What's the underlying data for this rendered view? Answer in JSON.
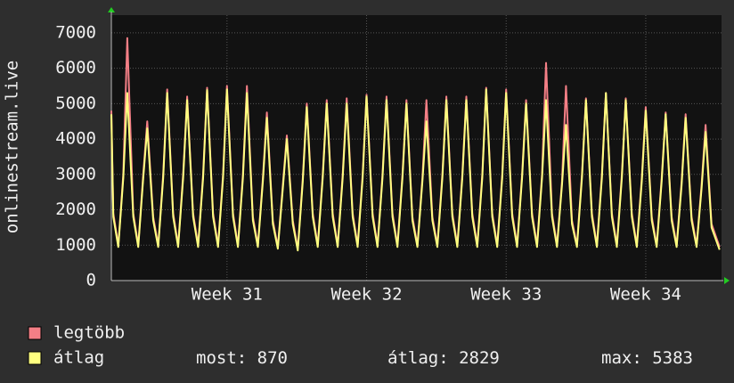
{
  "chart_data": {
    "type": "line",
    "ylabel": "onlinestream.live",
    "x": [
      0,
      0.1,
      0.35,
      0.6,
      0.8,
      1.1,
      1.35,
      1.6,
      1.8,
      2.1,
      2.35,
      2.6,
      2.8,
      3.1,
      3.35,
      3.6,
      3.8,
      4.1,
      4.35,
      4.6,
      4.8,
      5.1,
      5.35,
      5.6,
      5.8,
      6.1,
      6.35,
      6.6,
      6.8,
      7.1,
      7.35,
      7.6,
      7.8,
      8.1,
      8.35,
      8.6,
      8.8,
      9.1,
      9.35,
      9.6,
      9.8,
      10.1,
      10.35,
      10.6,
      10.8,
      11.1,
      11.35,
      11.6,
      11.8,
      12.1,
      12.35,
      12.6,
      12.8,
      13.1,
      13.35,
      13.6,
      13.8,
      14.1,
      14.35,
      14.6,
      14.8,
      15.1,
      15.35,
      15.6,
      15.8,
      16.1,
      16.35,
      16.6,
      16.8,
      17.1,
      17.35,
      17.6,
      17.8,
      18.1,
      18.35,
      18.6,
      18.8,
      19.1,
      19.35,
      19.6,
      19.8,
      20.1,
      20.35,
      20.6,
      20.8,
      21.1,
      21.35,
      21.6,
      21.8,
      22.1,
      22.35,
      22.6,
      22.8,
      23.1,
      23.35,
      23.6,
      23.8,
      24.1,
      24.35,
      24.6,
      24.8,
      25.1,
      25.35,
      25.6,
      25.8,
      26.1,
      26.35,
      26.6,
      26.8,
      27.1,
      27.35,
      27.6,
      27.8,
      28.1,
      28.35,
      28.6,
      28.8,
      29.1,
      29.35,
      29.6,
      29.8,
      30.1,
      30.5
    ],
    "series": [
      {
        "name": "legtöbb",
        "color": "#f47f86",
        "values": [
          4800,
          1900,
          1000,
          3000,
          6850,
          1900,
          1000,
          3000,
          4500,
          1800,
          1000,
          3000,
          5400,
          1900,
          1000,
          3000,
          5200,
          1900,
          1000,
          3000,
          5450,
          1900,
          1000,
          3000,
          5500,
          1900,
          1000,
          3000,
          5500,
          1800,
          1000,
          2900,
          4750,
          1700,
          950,
          2700,
          4100,
          1700,
          900,
          2900,
          5000,
          1900,
          1000,
          3000,
          5100,
          1900,
          1000,
          3000,
          5150,
          1900,
          1000,
          3000,
          5250,
          1900,
          1000,
          3000,
          5200,
          1900,
          1000,
          3000,
          5100,
          1800,
          1000,
          2900,
          5100,
          1800,
          1000,
          3000,
          5200,
          1900,
          1000,
          3000,
          5200,
          1900,
          1000,
          3000,
          5450,
          1900,
          1000,
          3000,
          5400,
          1900,
          1000,
          3000,
          5100,
          1900,
          1000,
          3000,
          6150,
          1900,
          1000,
          2800,
          5500,
          1700,
          1000,
          3000,
          5150,
          1900,
          1000,
          3000,
          5300,
          1900,
          1000,
          3000,
          5150,
          1900,
          1000,
          2900,
          4900,
          1800,
          1000,
          2900,
          4750,
          1800,
          1000,
          2800,
          4700,
          1800,
          1000,
          2700,
          4400,
          1600,
          950
        ]
      },
      {
        "name": "átlag",
        "color": "#ffff80",
        "values": [
          4700,
          1800,
          950,
          2900,
          5300,
          1800,
          950,
          2900,
          4300,
          1700,
          950,
          2900,
          5300,
          1800,
          950,
          2900,
          5100,
          1800,
          950,
          2900,
          5383,
          1800,
          950,
          2900,
          5400,
          1800,
          950,
          2900,
          5300,
          1700,
          950,
          2800,
          4600,
          1600,
          900,
          2600,
          4000,
          1600,
          850,
          2800,
          4900,
          1800,
          950,
          2900,
          5000,
          1800,
          950,
          2900,
          5000,
          1800,
          950,
          2900,
          5200,
          1800,
          950,
          2900,
          5100,
          1800,
          950,
          2900,
          5000,
          1700,
          950,
          2800,
          4500,
          1700,
          950,
          2900,
          5100,
          1800,
          950,
          2900,
          5100,
          1800,
          950,
          2900,
          5400,
          1800,
          950,
          2900,
          5300,
          1800,
          950,
          2900,
          5000,
          1800,
          950,
          2900,
          5100,
          1800,
          950,
          2700,
          4400,
          1600,
          950,
          2900,
          5100,
          1800,
          950,
          2900,
          5300,
          1800,
          950,
          2900,
          5100,
          1800,
          950,
          2800,
          4800,
          1700,
          950,
          2800,
          4700,
          1700,
          950,
          2700,
          4600,
          1700,
          950,
          2600,
          4200,
          1500,
          870
        ]
      }
    ],
    "xlim": [
      0,
      30.6
    ],
    "xticks": [
      {
        "value": 5.8,
        "label": "Week 31"
      },
      {
        "value": 12.8,
        "label": "Week 32"
      },
      {
        "value": 19.8,
        "label": "Week 33"
      },
      {
        "value": 26.8,
        "label": "Week 34"
      }
    ],
    "ylim": [
      0,
      7500
    ],
    "yticks": [
      0,
      1000,
      2000,
      3000,
      4000,
      5000,
      6000,
      7000
    ],
    "grid": true,
    "stats": [
      {
        "label": "most:",
        "value": 870
      },
      {
        "label": "átlag:",
        "value": 2829
      },
      {
        "label": "max:",
        "value": 5383
      }
    ]
  }
}
